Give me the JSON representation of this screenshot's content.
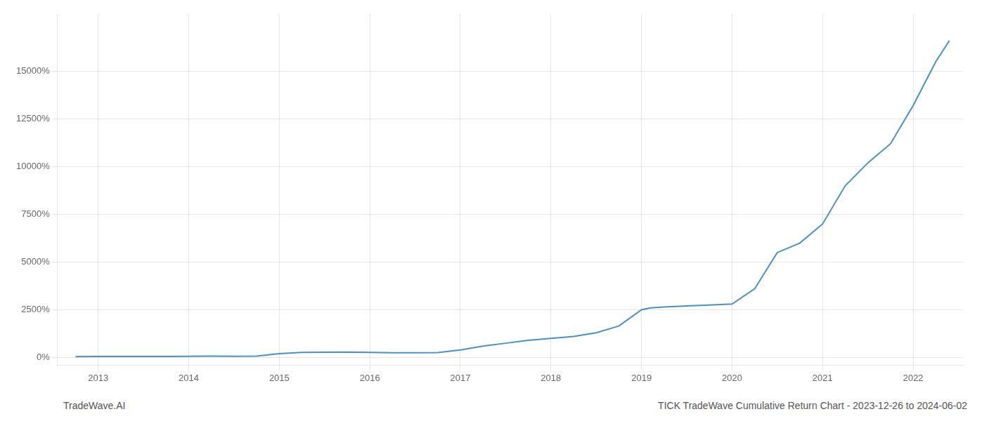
{
  "chart_data": {
    "type": "line",
    "title": "TICK TradeWave Cumulative Return Chart - 2023-12-26 to 2024-06-02",
    "annotations": [
      "TradeWave.AI"
    ],
    "x": [
      2012.75,
      2013.0,
      2013.25,
      2013.5,
      2013.75,
      2014.0,
      2014.25,
      2014.5,
      2014.75,
      2015.0,
      2015.25,
      2015.5,
      2015.75,
      2016.0,
      2016.25,
      2016.5,
      2016.75,
      2017.0,
      2017.25,
      2017.5,
      2017.75,
      2018.0,
      2018.25,
      2018.5,
      2018.75,
      2019.0,
      2019.1,
      2019.25,
      2019.5,
      2019.75,
      2020.0,
      2020.25,
      2020.5,
      2020.75,
      2021.0,
      2021.25,
      2021.5,
      2021.75,
      2022.0,
      2022.25,
      2022.4
    ],
    "values": [
      50,
      60,
      60,
      55,
      60,
      65,
      70,
      65,
      70,
      200,
      270,
      280,
      290,
      270,
      250,
      250,
      260,
      400,
      600,
      750,
      900,
      1000,
      1100,
      1300,
      1650,
      2500,
      2600,
      2650,
      2700,
      2750,
      2800,
      3600,
      5500,
      6000,
      7000,
      9000,
      10200,
      11200,
      13200,
      15500,
      16600
    ],
    "color": "#4a90c4",
    "xlim": [
      2012.55,
      2022.55
    ],
    "xticks": [
      2013,
      2014,
      2015,
      2016,
      2017,
      2018,
      2019,
      2020,
      2021,
      2022
    ],
    "ylim": [
      -400,
      18000
    ],
    "yticks": [
      {
        "value": 0,
        "label": "0%"
      },
      {
        "value": 2500,
        "label": "2500%"
      },
      {
        "value": 5000,
        "label": "5000%"
      },
      {
        "value": 7500,
        "label": "7500%"
      },
      {
        "value": 10000,
        "label": "10000%"
      },
      {
        "value": 12500,
        "label": "12500%"
      },
      {
        "value": 15000,
        "label": "15000%"
      }
    ],
    "grid": true
  }
}
